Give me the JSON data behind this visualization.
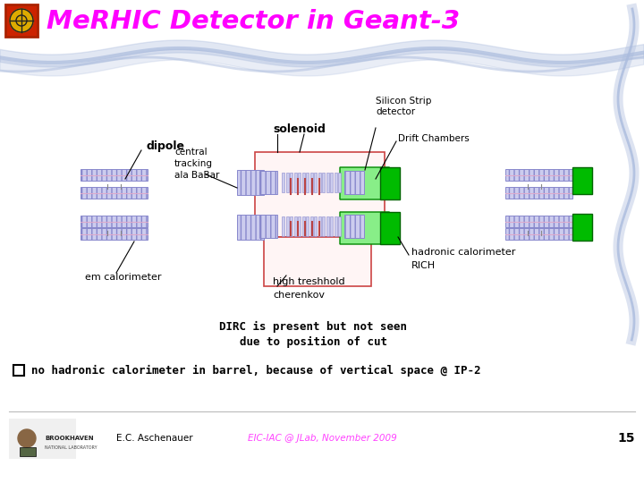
{
  "title": "MeRHIC Detector in Geant-3",
  "title_color": "#FF00FF",
  "bg_color": "#FFFFFF",
  "bullet_text": "no hadronic calorimeter in barrel, because of vertical space @ IP-2",
  "footer_author": "E.C. Aschenauer",
  "footer_center": "EIC-IAC @ JLab, November 2009",
  "footer_page": "15",
  "footer_color": "#FF44FF",
  "dirc_text1": "DIRC is present but not seen",
  "dirc_text2": "due to position of cut",
  "label_dipole": "dipole",
  "label_central": "central\ntracking\nala BaBar",
  "label_solenoid": "solenoid",
  "label_silicon": "Silicon Strip\ndetector",
  "label_drift": "Drift Chambers",
  "label_em": "em calorimeter",
  "label_high": "high treshhold",
  "label_cherenkov": "cherenkov",
  "label_hadronic": "hadronic calorimeter",
  "label_rich": "RICH",
  "purple": "#8888CC",
  "purple_fill": "#CCCCEE",
  "red_outline": "#CC4444",
  "green": "#00BB00",
  "green_light": "#88EE88",
  "wave_color": "#AABBDD",
  "brown_red": "#BB4444"
}
